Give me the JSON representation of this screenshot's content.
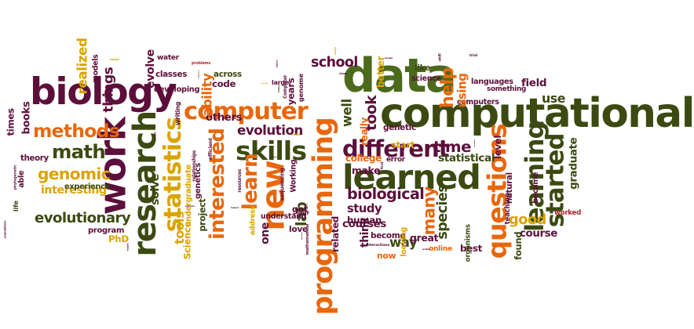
{
  "palette": {
    "maroon": "#5c0f3a",
    "olive": "#3c4a12",
    "orange": "#e8670c",
    "gold": "#d9a400",
    "red": "#b3242a",
    "green": "#4b6a1c"
  },
  "words": [
    {
      "text": "computational",
      "color": "olive",
      "vertical": false
    },
    {
      "text": "biology",
      "color": "maroon",
      "vertical": false
    },
    {
      "text": "data",
      "color": "green",
      "vertical": false
    },
    {
      "text": "programming",
      "color": "orange",
      "vertical": true
    },
    {
      "text": "computer",
      "color": "orange",
      "vertical": false
    },
    {
      "text": "research",
      "color": "olive",
      "vertical": true
    },
    {
      "text": "work",
      "color": "maroon",
      "vertical": true
    },
    {
      "text": "questions",
      "color": "orange",
      "vertical": true
    },
    {
      "text": "learned",
      "color": "olive",
      "vertical": false
    },
    {
      "text": "skills",
      "color": "olive",
      "vertical": false
    },
    {
      "text": "interested",
      "color": "orange",
      "vertical": true
    },
    {
      "text": "math",
      "color": "olive",
      "vertical": false
    },
    {
      "text": "different",
      "color": "maroon",
      "vertical": false
    },
    {
      "text": "statistics",
      "color": "gold",
      "vertical": true
    },
    {
      "text": "methods",
      "color": "orange",
      "vertical": false
    },
    {
      "text": "learning",
      "color": "olive",
      "vertical": true
    },
    {
      "text": "started",
      "color": "olive",
      "vertical": true
    },
    {
      "text": "evolutionary",
      "color": "olive",
      "vertical": false
    },
    {
      "text": "genomic",
      "color": "gold",
      "vertical": false
    },
    {
      "text": "new",
      "color": "orange",
      "vertical": true
    },
    {
      "text": "learn",
      "color": "orange",
      "vertical": true
    },
    {
      "text": "biological",
      "color": "maroon",
      "vertical": false
    },
    {
      "text": "evolution",
      "color": "maroon",
      "vertical": false
    },
    {
      "text": "school",
      "color": "maroon",
      "vertical": false
    },
    {
      "text": "time",
      "color": "maroon",
      "vertical": false
    },
    {
      "text": "good",
      "color": "gold",
      "vertical": false
    },
    {
      "text": "statistical",
      "color": "olive",
      "vertical": false
    },
    {
      "text": "study",
      "color": "maroon",
      "vertical": false
    },
    {
      "text": "interesting",
      "color": "gold",
      "vertical": false
    },
    {
      "text": "use",
      "color": "olive",
      "vertical": false
    },
    {
      "text": "things",
      "color": "maroon",
      "vertical": true
    },
    {
      "text": "many",
      "color": "orange",
      "vertical": true
    },
    {
      "text": "graduate",
      "color": "olive",
      "vertical": true
    },
    {
      "text": "help",
      "color": "orange",
      "vertical": true
    },
    {
      "text": "field",
      "color": "maroon",
      "vertical": false
    },
    {
      "text": "like",
      "color": "olive",
      "vertical": false
    },
    {
      "text": "courses",
      "color": "maroon",
      "vertical": false
    },
    {
      "text": "course",
      "color": "maroon",
      "vertical": false
    },
    {
      "text": "way",
      "color": "olive",
      "vertical": false
    },
    {
      "text": "make",
      "color": "maroon",
      "vertical": false
    },
    {
      "text": "well",
      "color": "olive",
      "vertical": true
    },
    {
      "text": "took",
      "color": "maroon",
      "vertical": true
    },
    {
      "text": "realized",
      "color": "gold",
      "vertical": true
    },
    {
      "text": "others",
      "color": "maroon",
      "vertical": false
    },
    {
      "text": "ability",
      "color": "orange",
      "vertical": true
    },
    {
      "text": "college",
      "color": "orange",
      "vertical": false
    },
    {
      "text": "species",
      "color": "olive",
      "vertical": true
    },
    {
      "text": "great",
      "color": "maroon",
      "vertical": false
    },
    {
      "text": "best",
      "color": "maroon",
      "vertical": false
    },
    {
      "text": "experience",
      "color": "olive",
      "vertical": false
    },
    {
      "text": "project",
      "color": "olive",
      "vertical": true
    },
    {
      "text": "lab",
      "color": "olive",
      "vertical": true
    },
    {
      "text": "computers",
      "color": "maroon",
      "vertical": false
    },
    {
      "text": "human",
      "color": "maroon",
      "vertical": false
    },
    {
      "text": "genetics",
      "color": "maroon",
      "vertical": true
    },
    {
      "text": "understand",
      "color": "maroon",
      "vertical": false
    },
    {
      "text": "really",
      "color": "orange",
      "vertical": true
    },
    {
      "text": "think",
      "color": "maroon",
      "vertical": true
    },
    {
      "text": "undergraduate",
      "color": "gold",
      "vertical": true
    },
    {
      "text": "classes",
      "color": "maroon",
      "vertical": false
    },
    {
      "text": "developing",
      "color": "maroon",
      "vertical": false
    },
    {
      "text": "tools",
      "color": "gold",
      "vertical": true
    },
    {
      "text": "languages",
      "color": "maroon",
      "vertical": false
    },
    {
      "text": "something",
      "color": "maroon",
      "vertical": false
    },
    {
      "text": "using",
      "color": "orange",
      "vertical": true
    },
    {
      "text": "better",
      "color": "gold",
      "vertical": true
    },
    {
      "text": "address",
      "color": "gold",
      "vertical": true
    },
    {
      "text": "become",
      "color": "maroon",
      "vertical": false
    },
    {
      "text": "theory",
      "color": "maroon",
      "vertical": false
    },
    {
      "text": "able",
      "color": "maroon",
      "vertical": true
    },
    {
      "text": "life",
      "color": "olive",
      "vertical": true
    },
    {
      "text": "program",
      "color": "maroon",
      "vertical": false
    },
    {
      "text": "love",
      "color": "maroon",
      "vertical": false
    },
    {
      "text": "one",
      "color": "maroon",
      "vertical": true
    },
    {
      "text": "Working",
      "color": "maroon",
      "vertical": true
    },
    {
      "text": "worked",
      "color": "red",
      "vertical": false
    },
    {
      "text": "organisms",
      "color": "olive",
      "vertical": true
    },
    {
      "text": "found",
      "color": "olive",
      "vertical": true
    },
    {
      "text": "now",
      "color": "orange",
      "vertical": false
    },
    {
      "text": "online",
      "color": "orange",
      "vertical": false
    },
    {
      "text": "across",
      "color": "olive",
      "vertical": false
    },
    {
      "text": "science",
      "color": "maroon",
      "vertical": false
    },
    {
      "text": "water",
      "color": "maroon",
      "vertical": false
    },
    {
      "text": "background",
      "color": "maroon",
      "vertical": true
    },
    {
      "text": "evolve",
      "color": "maroon",
      "vertical": true
    },
    {
      "text": "models",
      "color": "maroon",
      "vertical": true
    },
    {
      "text": "major",
      "color": "gold",
      "vertical": false
    },
    {
      "text": "problems",
      "color": "red",
      "vertical": false
    },
    {
      "text": "code",
      "color": "maroon",
      "vertical": false
    },
    {
      "text": "large",
      "color": "maroon",
      "vertical": false
    },
    {
      "text": "Patience",
      "color": "olive",
      "vertical": true
    },
    {
      "text": "sequencing",
      "color": "maroon",
      "vertical": true
    },
    {
      "text": "software",
      "color": "maroon",
      "vertical": false
    },
    {
      "text": "bioinformatics",
      "color": "maroon",
      "vertical": true
    },
    {
      "text": "solve",
      "color": "olive",
      "vertical": true
    },
    {
      "text": "process",
      "color": "maroon",
      "vertical": false
    },
    {
      "text": "PhD",
      "color": "gold",
      "vertical": false
    },
    {
      "text": "taught",
      "color": "maroon",
      "vertical": true
    },
    {
      "text": "books",
      "color": "maroon",
      "vertical": true
    },
    {
      "text": "helped",
      "color": "maroon",
      "vertical": false
    },
    {
      "text": "people",
      "color": "maroon",
      "vertical": true
    },
    {
      "text": "efficient",
      "color": "maroon",
      "vertical": true
    },
    {
      "text": "resources",
      "color": "maroon",
      "vertical": true
    },
    {
      "text": "relationships",
      "color": "maroon",
      "vertical": true
    },
    {
      "text": "scientific",
      "color": "gold",
      "vertical": false
    },
    {
      "text": "degree",
      "color": "maroon",
      "vertical": true
    },
    {
      "text": "genome",
      "color": "maroon",
      "vertical": true
    },
    {
      "text": "Computer",
      "color": "maroon",
      "vertical": true
    },
    {
      "text": "years",
      "color": "maroon",
      "vertical": true
    },
    {
      "text": "read",
      "color": "gold",
      "vertical": false
    },
    {
      "text": "got",
      "color": "maroon",
      "vertical": false
    },
    {
      "text": "early",
      "color": "maroon",
      "vertical": false
    },
    {
      "text": "question",
      "color": "maroon",
      "vertical": true
    },
    {
      "text": "mathematical",
      "color": "maroon",
      "vertical": true
    },
    {
      "text": "related",
      "color": "maroon",
      "vertical": true
    },
    {
      "text": "looking",
      "color": "gold",
      "vertical": true
    },
    {
      "text": "problem",
      "color": "maroon",
      "vertical": false
    },
    {
      "text": "interactions",
      "color": "maroon",
      "vertical": false
    },
    {
      "text": "genetic",
      "color": "maroon",
      "vertical": false
    },
    {
      "text": "start",
      "color": "gold",
      "vertical": false
    },
    {
      "text": "error",
      "color": "maroon",
      "vertical": false
    },
    {
      "text": "first",
      "color": "maroon",
      "vertical": true
    },
    {
      "text": "class",
      "color": "maroon",
      "vertical": false
    },
    {
      "text": "thought",
      "color": "gold",
      "vertical": true
    },
    {
      "text": "biologist",
      "color": "maroon",
      "vertical": false
    },
    {
      "text": "skill",
      "color": "maroon",
      "vertical": true
    },
    {
      "text": "trial",
      "color": "maroon",
      "vertical": false
    },
    {
      "text": "population",
      "color": "maroon",
      "vertical": true
    },
    {
      "text": "teaching",
      "color": "maroon",
      "vertical": true
    },
    {
      "text": "natural",
      "color": "maroon",
      "vertical": true
    },
    {
      "text": "became",
      "color": "maroon",
      "vertical": true
    },
    {
      "text": "level",
      "color": "maroon",
      "vertical": true
    },
    {
      "text": "populations",
      "color": "maroon",
      "vertical": true
    },
    {
      "text": "Science",
      "color": "gold",
      "vertical": true
    },
    {
      "text": "phylogenetic",
      "color": "maroon",
      "vertical": true
    },
    {
      "text": "times",
      "color": "maroon",
      "vertical": true
    },
    {
      "text": "writing",
      "color": "maroon",
      "vertical": true
    }
  ]
}
